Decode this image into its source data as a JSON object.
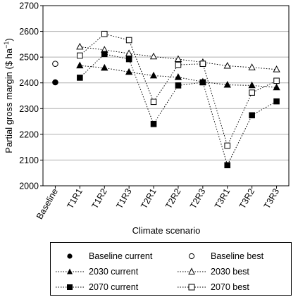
{
  "chart_data": {
    "type": "line",
    "xlabel": "Climate scenario",
    "ylabel": "Partial gross margin ($ ha",
    "ylabel_sup": "−1",
    "ylabel_close": ")",
    "categories": [
      "Baseline",
      "T1R1",
      "T1R2",
      "T1R3",
      "T2R1",
      "T2R2",
      "T2R3",
      "T3R1",
      "T3R2",
      "T3R3"
    ],
    "ylim": [
      2000,
      2700
    ],
    "yticks": [
      "2000",
      "2100",
      "2200",
      "2300",
      "2400",
      "2500",
      "2600",
      "2700"
    ],
    "grid": "horizontal",
    "legend_position": "bottom",
    "series": [
      {
        "name": "Baseline current",
        "marker": "circle",
        "fill": "filled",
        "line": "none",
        "values": [
          2402,
          null,
          null,
          null,
          null,
          null,
          null,
          null,
          null,
          null
        ]
      },
      {
        "name": "Baseline best",
        "marker": "circle",
        "fill": "open",
        "line": "none",
        "values": [
          2474,
          null,
          null,
          null,
          null,
          null,
          null,
          null,
          null,
          null
        ]
      },
      {
        "name": "2030 current",
        "marker": "triangle",
        "fill": "filled",
        "line": "dotted",
        "values": [
          null,
          2467,
          2458,
          2442,
          2428,
          2422,
          2404,
          2392,
          2390,
          2382
        ]
      },
      {
        "name": "2030 best",
        "marker": "triangle",
        "fill": "open",
        "line": "dotted",
        "values": [
          null,
          2540,
          2528,
          2514,
          2502,
          2492,
          2480,
          2466,
          2460,
          2452
        ]
      },
      {
        "name": "2070 current",
        "marker": "square",
        "fill": "filled",
        "line": "dotted",
        "values": [
          null,
          2420,
          2512,
          2492,
          2240,
          2390,
          2402,
          2080,
          2274,
          2328
        ]
      },
      {
        "name": "2070 best",
        "marker": "square",
        "fill": "open",
        "line": "dotted",
        "values": [
          null,
          2506,
          2590,
          2566,
          2326,
          2470,
          2474,
          2156,
          2362,
          2408
        ]
      }
    ]
  }
}
